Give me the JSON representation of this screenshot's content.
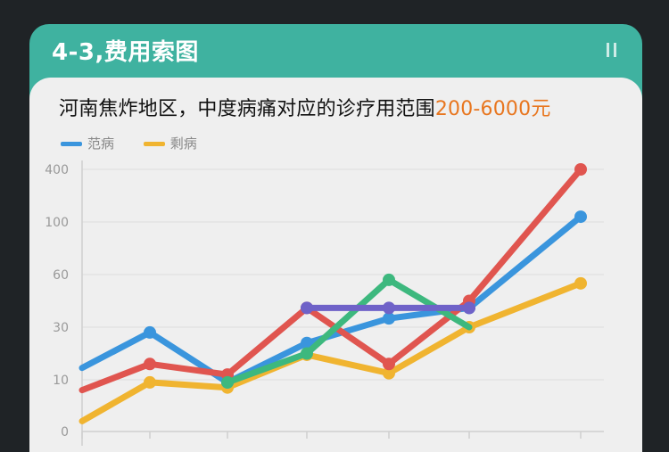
{
  "header": {
    "title": "4-3,费用索图"
  },
  "chart_title": {
    "main": "河南焦炸地区，中度病痛对应的诊疗用范围",
    "accent": "200-6000元"
  },
  "colors": {
    "header_bg": "#3fb2a0",
    "accent": "#e8761f",
    "blue": "#3a95dd",
    "red": "#e0554f",
    "yellow": "#f0b430",
    "green": "#3db87e",
    "purple": "#6f62c8"
  },
  "chart_data": {
    "type": "line",
    "title": "河南焦炸地区，中度病痛对应的诊疗用范围200-6000元",
    "legend_position": "top-left",
    "grid": true,
    "y_tick_labels": [
      "400",
      "100",
      "60",
      "30",
      "10",
      "0"
    ],
    "x": [
      0,
      1,
      2,
      3,
      4,
      5,
      6
    ],
    "series": [
      {
        "name": "范病",
        "color": "#3a95dd",
        "points": [
          [
            0,
            14.5
          ],
          [
            1,
            28
          ],
          [
            2,
            9.5
          ],
          [
            3,
            24
          ],
          [
            4,
            35
          ],
          [
            5,
            41
          ],
          [
            6,
            130
          ]
        ]
      },
      {
        "name": "",
        "color": "#e0554f",
        "points": [
          [
            0,
            8
          ],
          [
            1,
            16
          ],
          [
            2,
            12
          ],
          [
            3,
            41
          ],
          [
            4,
            16
          ],
          [
            5,
            45
          ],
          [
            6,
            400
          ]
        ]
      },
      {
        "name": "剩病",
        "color": "#f0b430",
        "points": [
          [
            0,
            2
          ],
          [
            1,
            9.5
          ],
          [
            2,
            8.5
          ],
          [
            3,
            19.5
          ],
          [
            4,
            12.5
          ],
          [
            5,
            30
          ],
          [
            6,
            55
          ]
        ]
      },
      {
        "name": "",
        "color": "#3db87e",
        "points": [
          [
            2,
            9.5
          ],
          [
            3,
            20
          ],
          [
            4,
            57
          ],
          [
            5,
            30
          ]
        ]
      },
      {
        "name": "",
        "color": "#6f62c8",
        "points": [
          [
            3,
            41
          ],
          [
            4,
            41
          ],
          [
            5,
            41
          ]
        ]
      }
    ]
  }
}
